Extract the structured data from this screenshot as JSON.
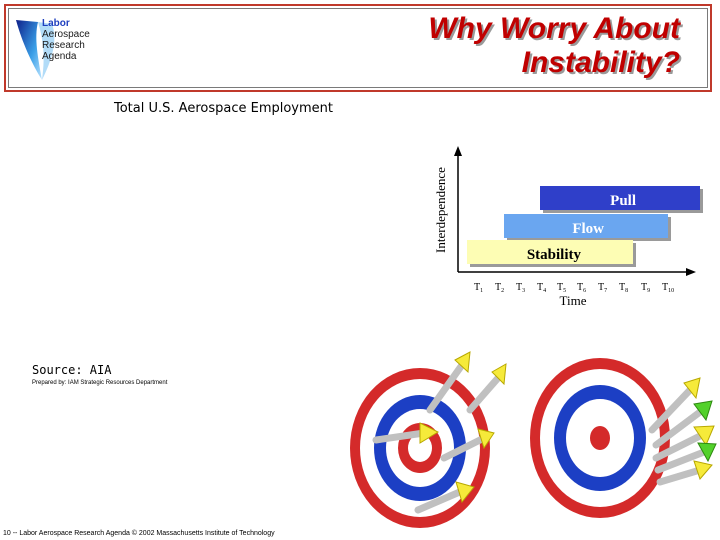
{
  "header": {
    "title_line1": "Why Worry About",
    "title_line2": "Instability?",
    "logo": {
      "line1": "Labor",
      "line2": "Aerospace",
      "line3": "Research",
      "line4": "Agenda"
    }
  },
  "employment_title": "Total U.S. Aerospace Employment",
  "diagram": {
    "y_axis_label": "Interdependence",
    "x_axis_label": "Time",
    "bars": [
      {
        "label": "Pull",
        "color": "#2f3fc9"
      },
      {
        "label": "Flow",
        "color": "#6aa6f0"
      },
      {
        "label": "Stability",
        "color": "#fdfdb4"
      }
    ],
    "ticks": [
      {
        "base": "T",
        "sub": "1"
      },
      {
        "base": "T",
        "sub": "2"
      },
      {
        "base": "T",
        "sub": "3"
      },
      {
        "base": "T",
        "sub": "4"
      },
      {
        "base": "T",
        "sub": "5"
      },
      {
        "base": "T",
        "sub": "6"
      },
      {
        "base": "T",
        "sub": "7"
      },
      {
        "base": "T",
        "sub": "8"
      },
      {
        "base": "T",
        "sub": "9"
      },
      {
        "base": "T",
        "sub": "10"
      }
    ]
  },
  "source": "Source: AIA",
  "prepared_by": "Prepared by: IAM Strategic Resources Department",
  "footer": "10 -- Labor Aerospace Research Agenda © 2002 Massachusetts Institute of Technology"
}
